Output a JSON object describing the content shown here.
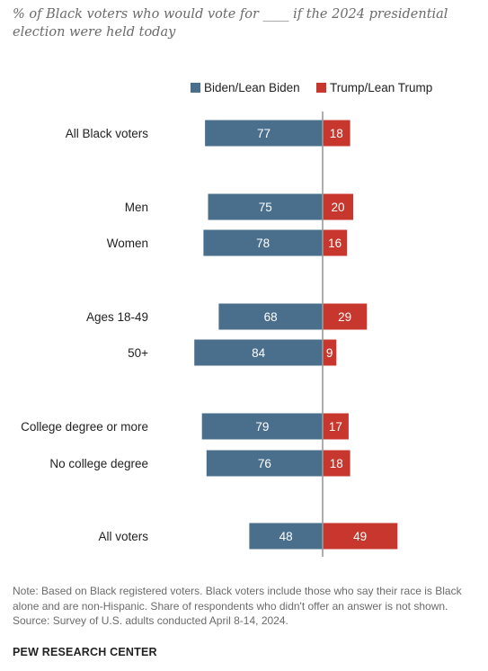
{
  "header": {
    "subtitle": "% of Black voters who would vote for ____ if the 2024 presidential election were held today"
  },
  "legend": {
    "biden": "Biden/Lean Biden",
    "trump": "Trump/Lean Trump"
  },
  "colors": {
    "biden": "#4a6f8d",
    "trump": "#c8372d",
    "axis": "#9a9a9a"
  },
  "chart_data": {
    "type": "bar",
    "orientation": "horizontal-diverging",
    "categories": [
      "All Black voters",
      "Men",
      "Women",
      "Ages 18-49",
      "50+",
      "College degree or more",
      "No college degree",
      "All voters"
    ],
    "series": [
      {
        "name": "Biden/Lean Biden",
        "values": [
          77,
          75,
          78,
          68,
          84,
          79,
          76,
          48
        ]
      },
      {
        "name": "Trump/Lean Trump",
        "values": [
          18,
          20,
          16,
          29,
          9,
          17,
          18,
          49
        ]
      }
    ],
    "legend_position": "top-right",
    "grid": false
  },
  "footer": {
    "note": "Note: Based on Black registered voters. Black voters include those who say their race is Black alone and are non-Hispanic. Share of respondents who didn't offer an answer is not shown.",
    "source": "Source: Survey of U.S. adults conducted April 8-14, 2024.",
    "brand": "PEW RESEARCH CENTER"
  }
}
